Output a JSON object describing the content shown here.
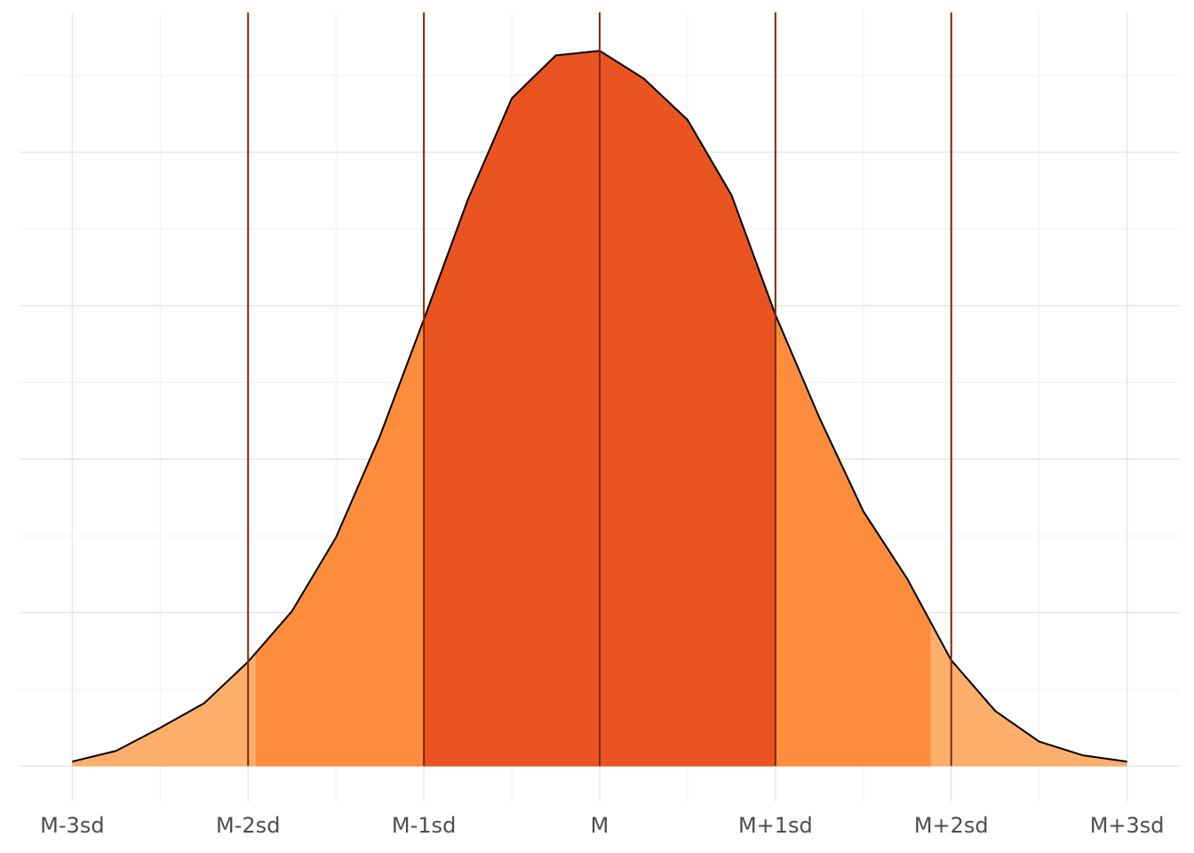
{
  "chart_data": {
    "type": "density",
    "x": [
      -3,
      -2.75,
      -2.5,
      -2.25,
      -2,
      -1.75,
      -1.5,
      -1.25,
      -1,
      -0.75,
      -0.5,
      -0.25,
      0,
      0.25,
      0.5,
      0.75,
      1,
      1.25,
      1.5,
      1.75,
      2,
      2.25,
      2.5,
      2.75,
      3
    ],
    "values": [
      0.003,
      0.01,
      0.025,
      0.041,
      0.068,
      0.101,
      0.149,
      0.215,
      0.291,
      0.369,
      0.435,
      0.463,
      0.466,
      0.448,
      0.421,
      0.372,
      0.294,
      0.227,
      0.166,
      0.122,
      0.069,
      0.036,
      0.016,
      0.007,
      0.003
    ],
    "line_color": "#000000",
    "regions": [
      {
        "from": -3,
        "to": -1.955,
        "color": "#fdae6b"
      },
      {
        "from": -1.955,
        "to": -1,
        "color": "#fd8d3c"
      },
      {
        "from": -1,
        "to": 1,
        "color": "#e95420"
      },
      {
        "from": 1,
        "to": 1.884,
        "color": "#fd8d3c"
      },
      {
        "from": 1.884,
        "to": 3,
        "color": "#fdae6b"
      }
    ],
    "vlines": [
      -2,
      -1,
      0,
      1,
      2
    ],
    "vline_color": "#7f2704",
    "xlim": [
      -3.3,
      3.3
    ],
    "xticks": [
      {
        "value": -3,
        "label": "M-3sd"
      },
      {
        "value": -2,
        "label": "M-2sd"
      },
      {
        "value": -1,
        "label": "M-1sd"
      },
      {
        "value": 0,
        "label": "M"
      },
      {
        "value": 1,
        "label": "M+1sd"
      },
      {
        "value": 2,
        "label": "M+2sd"
      },
      {
        "value": 3,
        "label": "M+3sd"
      }
    ],
    "ylim": [
      -0.023,
      0.491
    ],
    "yticks": [
      0,
      0.1,
      0.2,
      0.3,
      0.4
    ],
    "grid": true
  }
}
